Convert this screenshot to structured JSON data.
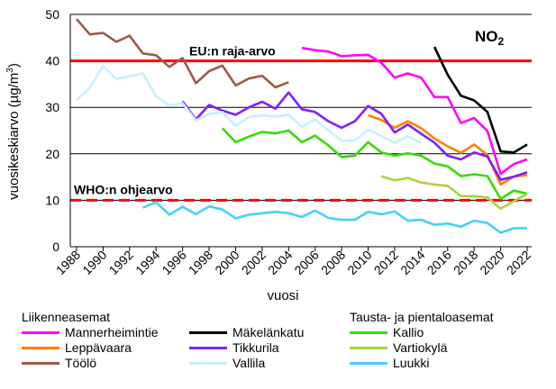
{
  "chart_data": {
    "type": "line",
    "title": "NO",
    "title_sub": "2",
    "ylabel": "vuosikeskiarvo (µg/m",
    "ylabel_sup": "3",
    "ylabel_end": ")",
    "xlabel": "vuosi",
    "ylim": [
      0,
      50
    ],
    "yticks": [
      0,
      10,
      20,
      30,
      40,
      50
    ],
    "xlim": [
      1988,
      2022
    ],
    "xticks": [
      1988,
      1990,
      1992,
      1994,
      1996,
      1998,
      2000,
      2002,
      2004,
      2006,
      2008,
      2010,
      2012,
      2014,
      2016,
      2018,
      2020,
      2022
    ],
    "grid": "horizontal",
    "reference_lines": [
      {
        "label": "EU:n raja-arvo",
        "value": 40,
        "color": "#ff0000",
        "style": "solid"
      },
      {
        "label": "WHO:n ohjearvo",
        "value": 10,
        "color": "#ff0000",
        "style": "dashed"
      }
    ],
    "legend_groups": [
      {
        "title": "Liikenneasemat"
      },
      {
        "title": "Tausta- ja pientaloasemat"
      }
    ],
    "series": [
      {
        "name": "Mannerheimintie",
        "color": "#ff00ff",
        "x": [
          2005,
          2006,
          2007,
          2008,
          2009,
          2010,
          2011,
          2012,
          2013,
          2014,
          2015,
          2016,
          2017,
          2018,
          2019,
          2020,
          2021,
          2022
        ],
        "values": [
          42.8,
          42.3,
          42.0,
          41.0,
          41.2,
          41.3,
          39.6,
          36.4,
          37.3,
          36.4,
          32.2,
          32.2,
          26.6,
          27.7,
          24.9,
          15.7,
          17.8,
          18.8
        ]
      },
      {
        "name": "Mäkelänkatu",
        "color": "#000000",
        "x": [
          2015,
          2016,
          2017,
          2018,
          2019,
          2020,
          2021,
          2022
        ],
        "values": [
          43.0,
          37.0,
          32.5,
          31.5,
          29.0,
          20.5,
          20.3,
          22.0
        ]
      },
      {
        "name": "Kallio",
        "color": "#33dd00",
        "x": [
          1999,
          2000,
          2001,
          2002,
          2003,
          2004,
          2005,
          2006,
          2007,
          2008,
          2009,
          2010,
          2011,
          2012,
          2013,
          2014,
          2015,
          2016,
          2017,
          2018,
          2019,
          2020,
          2021,
          2022
        ],
        "values": [
          25.5,
          22.5,
          23.7,
          24.7,
          24.4,
          25.0,
          22.5,
          23.9,
          21.8,
          19.3,
          19.6,
          22.5,
          20.3,
          19.6,
          20.1,
          19.6,
          17.9,
          17.3,
          15.2,
          15.6,
          15.2,
          10.3,
          12.1,
          11.4
        ]
      },
      {
        "name": "Leppävaara",
        "color": "#ff8000",
        "x": [
          2010,
          2011,
          2012,
          2013,
          2014,
          2015,
          2016,
          2017,
          2018,
          2019,
          2020,
          2021,
          2022
        ],
        "values": [
          28.3,
          27.3,
          25.6,
          27.0,
          25.5,
          23.3,
          21.6,
          20.2,
          22.0,
          19.7,
          13.4,
          15.1,
          15.4
        ]
      },
      {
        "name": "Tikkurila",
        "color": "#7f1fff",
        "x": [
          1996,
          1997,
          1998,
          1999,
          2000,
          2001,
          2002,
          2003,
          2004,
          2005,
          2006,
          2007,
          2008,
          2009,
          2010,
          2011,
          2012,
          2013,
          2014,
          2015,
          2016,
          2017,
          2018,
          2019,
          2020,
          2021,
          2022
        ],
        "values": [
          31.3,
          27.4,
          30.5,
          29.3,
          28.4,
          30.0,
          31.2,
          29.7,
          33.2,
          29.6,
          29.0,
          27.0,
          25.6,
          27.0,
          30.3,
          28.6,
          24.6,
          26.3,
          24.3,
          22.4,
          19.6,
          18.8,
          20.3,
          19.4,
          14.4,
          15.1,
          16.0
        ]
      },
      {
        "name": "Vartiokylä",
        "color": "#a9d23c",
        "x": [
          2011,
          2012,
          2013,
          2014,
          2015,
          2016,
          2017,
          2018,
          2019,
          2020,
          2021,
          2022
        ],
        "values": [
          15.2,
          14.3,
          14.8,
          13.8,
          13.4,
          13.1,
          10.9,
          10.9,
          10.6,
          8.2,
          9.8,
          11.4
        ]
      },
      {
        "name": "Töölö",
        "color": "#9e5a47",
        "x": [
          1988,
          1989,
          1990,
          1991,
          1992,
          1993,
          1994,
          1995,
          1996,
          1997,
          1998,
          1999,
          2000,
          2001,
          2002,
          2003,
          2004
        ],
        "values": [
          49.0,
          45.7,
          46.0,
          44.1,
          45.4,
          41.6,
          41.2,
          38.7,
          40.6,
          35.2,
          37.8,
          39.0,
          34.7,
          36.2,
          36.8,
          34.3,
          35.4
        ]
      },
      {
        "name": "Vallila",
        "color": "#c6f0ff",
        "x": [
          1988,
          1989,
          1990,
          1991,
          1992,
          1993,
          1994,
          1995,
          1996,
          1997,
          1998,
          1999,
          2000,
          2001,
          2002,
          2003,
          2004,
          2005,
          2006,
          2007,
          2008,
          2009,
          2010,
          2011,
          2012,
          2013,
          2014
        ],
        "values": [
          31.6,
          34.2,
          38.9,
          36.1,
          36.7,
          37.3,
          32.4,
          30.4,
          30.9,
          27.2,
          28.6,
          29.0,
          26.0,
          27.9,
          28.3,
          28.0,
          28.4,
          25.8,
          27.4,
          25.1,
          22.8,
          22.9,
          25.2,
          23.8,
          22.4,
          23.8,
          22.3
        ]
      },
      {
        "name": "Luukki",
        "color": "#44d2f5",
        "x": [
          1993,
          1994,
          1995,
          1996,
          1997,
          1998,
          1999,
          2000,
          2001,
          2002,
          2003,
          2004,
          2005,
          2006,
          2007,
          2008,
          2009,
          2010,
          2011,
          2012,
          2013,
          2014,
          2015,
          2016,
          2017,
          2018,
          2019,
          2020,
          2021,
          2022
        ],
        "values": [
          8.4,
          9.6,
          6.9,
          8.6,
          7.0,
          8.7,
          8.0,
          6.1,
          6.9,
          7.2,
          7.5,
          7.2,
          6.4,
          7.8,
          6.2,
          5.8,
          5.8,
          7.5,
          7.0,
          7.6,
          5.6,
          5.8,
          4.7,
          5.0,
          4.3,
          5.6,
          5.1,
          3.0,
          4.0,
          4.0
        ]
      }
    ]
  },
  "legend": {
    "traffic_title": "Liikenneasemat",
    "background_title": "Tausta- ja pientaloasemat",
    "items": [
      {
        "label": "Mannerheimintie",
        "color": "#ff00ff"
      },
      {
        "label": "Mäkelänkatu",
        "color": "#000000"
      },
      {
        "label": "Kallio",
        "color": "#33dd00"
      },
      {
        "label": "Leppävaara",
        "color": "#ff8000"
      },
      {
        "label": "Tikkurila",
        "color": "#7f1fff"
      },
      {
        "label": "Vartiokylä",
        "color": "#a9d23c"
      },
      {
        "label": "Töölö",
        "color": "#9e5a47"
      },
      {
        "label": "Vallila",
        "color": "#c6f0ff"
      },
      {
        "label": "Luukki",
        "color": "#44d2f5"
      }
    ]
  }
}
